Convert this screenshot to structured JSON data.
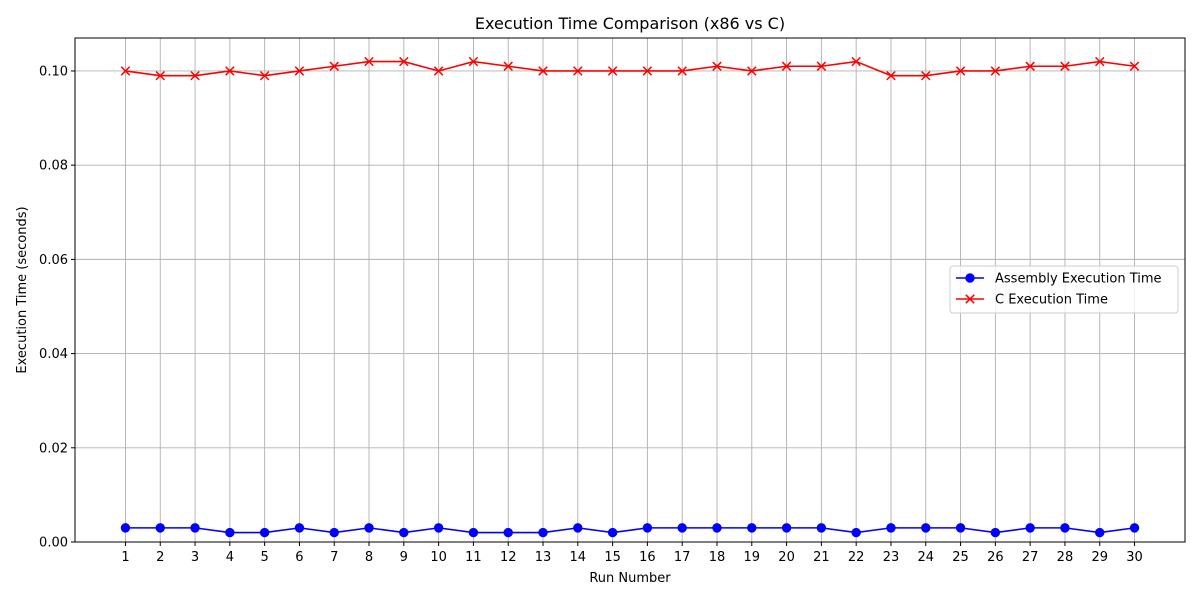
{
  "chart_data": {
    "type": "line",
    "title": "Execution Time Comparison (x86 vs C)",
    "xlabel": "Run Number",
    "ylabel": "Execution Time (seconds)",
    "x": [
      1,
      2,
      3,
      4,
      5,
      6,
      7,
      8,
      9,
      10,
      11,
      12,
      13,
      14,
      15,
      16,
      17,
      18,
      19,
      20,
      21,
      22,
      23,
      24,
      25,
      26,
      27,
      28,
      29,
      30
    ],
    "xlim": [
      -0.45,
      31.45
    ],
    "ylim": [
      0.0,
      0.107
    ],
    "yticks": [
      0.0,
      0.02,
      0.04,
      0.06,
      0.08,
      0.1
    ],
    "ytick_labels": [
      "0.00",
      "0.02",
      "0.04",
      "0.06",
      "0.08",
      "0.10"
    ],
    "grid": true,
    "legend_position": "center-right",
    "series": [
      {
        "name": "Assembly Execution Time",
        "color": "#0000ff",
        "marker": "circle",
        "values": [
          0.003,
          0.003,
          0.003,
          0.002,
          0.002,
          0.003,
          0.002,
          0.003,
          0.002,
          0.003,
          0.002,
          0.002,
          0.002,
          0.003,
          0.002,
          0.003,
          0.003,
          0.003,
          0.003,
          0.003,
          0.003,
          0.002,
          0.003,
          0.003,
          0.003,
          0.002,
          0.003,
          0.003,
          0.002,
          0.003
        ]
      },
      {
        "name": "C Execution Time",
        "color": "#ff0000",
        "marker": "x",
        "values": [
          0.1,
          0.099,
          0.099,
          0.1,
          0.099,
          0.1,
          0.101,
          0.102,
          0.102,
          0.1,
          0.102,
          0.101,
          0.1,
          0.1,
          0.1,
          0.1,
          0.1,
          0.101,
          0.1,
          0.101,
          0.101,
          0.102,
          0.099,
          0.099,
          0.1,
          0.1,
          0.101,
          0.101,
          0.102,
          0.101
        ]
      }
    ]
  }
}
